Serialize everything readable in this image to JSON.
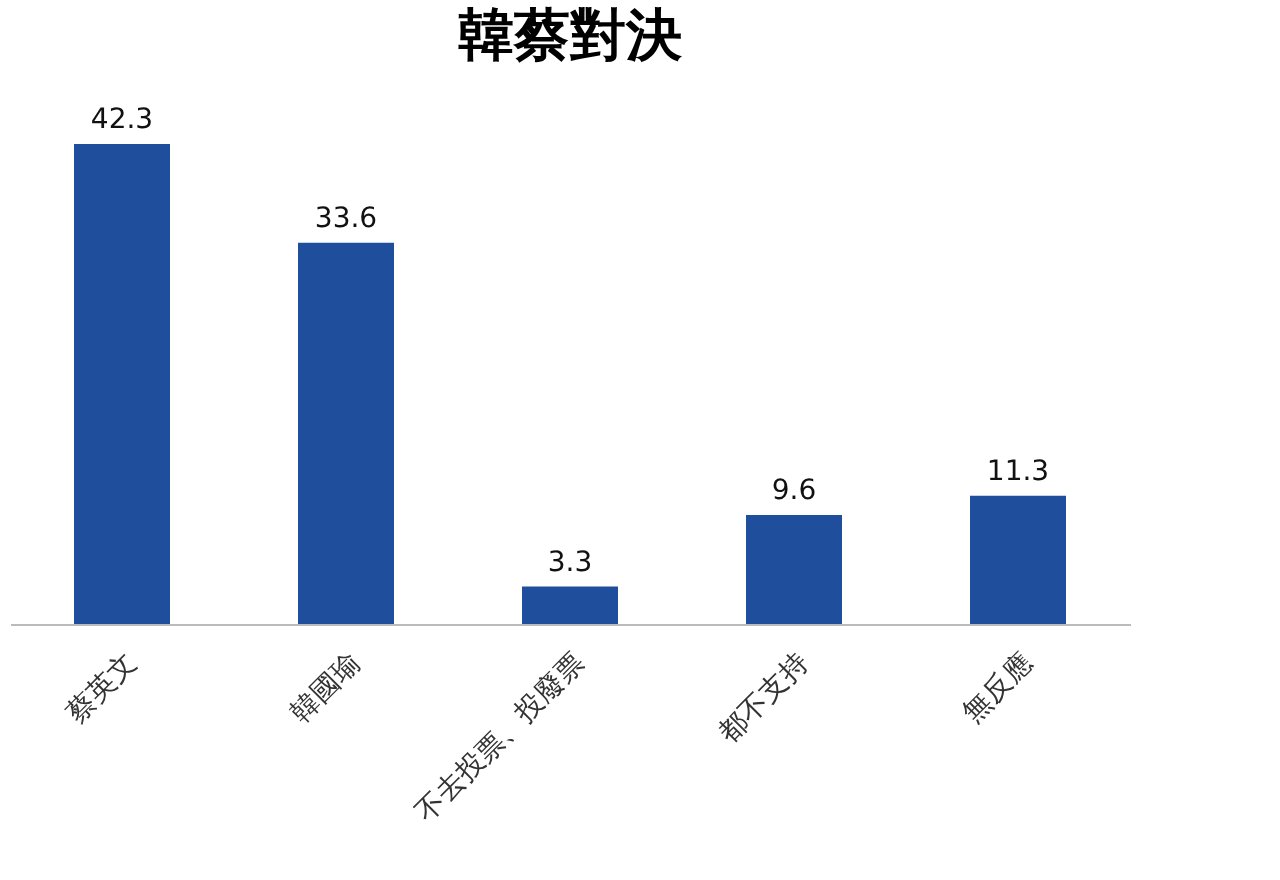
{
  "chart_data": {
    "type": "bar",
    "title": "韓蔡對決",
    "categories": [
      "蔡英文",
      "韓國瑜",
      "不去投票、投廢票",
      "都不支持",
      "無反應"
    ],
    "values": [
      42.3,
      33.6,
      3.3,
      9.6,
      11.3
    ],
    "color": "#1f4e9c",
    "data_labels": true,
    "grid": false
  }
}
